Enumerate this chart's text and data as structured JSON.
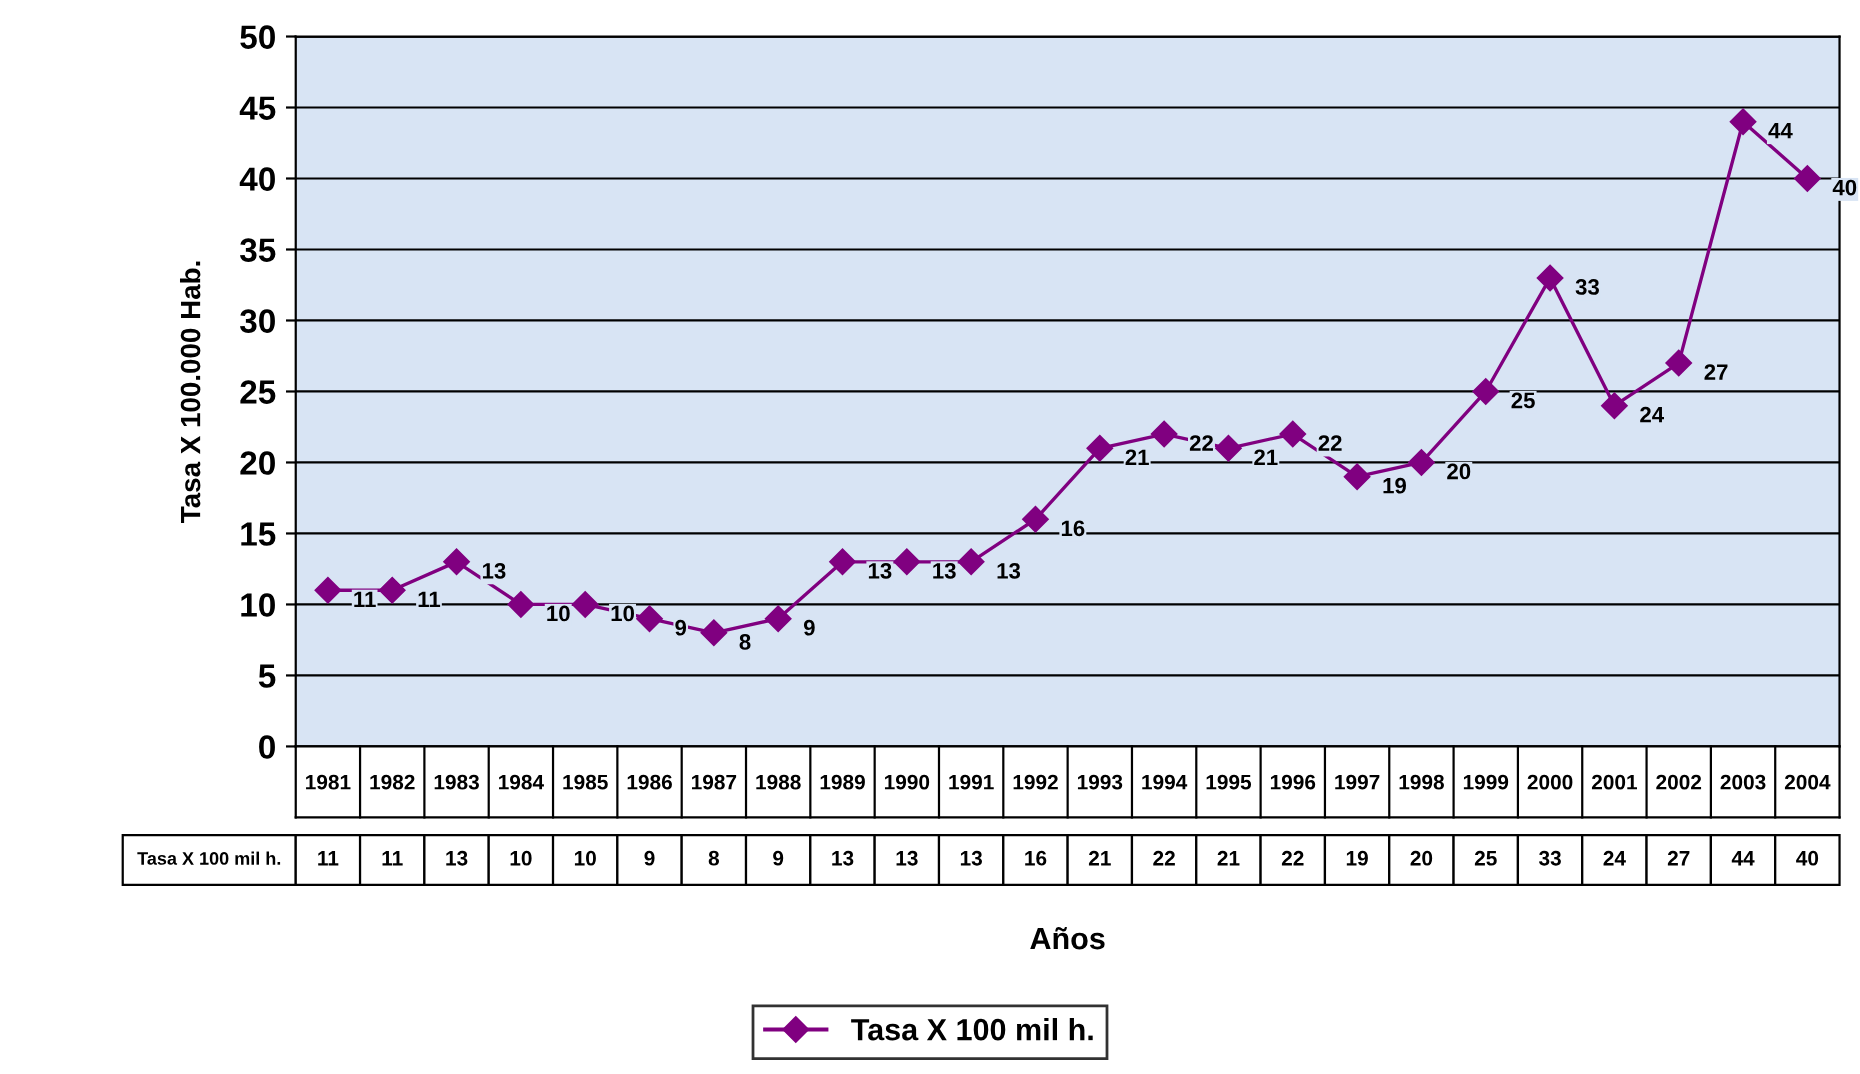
{
  "chart_data": {
    "type": "line",
    "ylabel": "Tasa X 100.000 Hab.",
    "xlabel": "Años",
    "categories": [
      "1981",
      "1982",
      "1983",
      "1984",
      "1985",
      "1986",
      "1987",
      "1988",
      "1989",
      "1990",
      "1991",
      "1992",
      "1993",
      "1994",
      "1995",
      "1996",
      "1997",
      "1998",
      "1999",
      "2000",
      "2001",
      "2002",
      "2003",
      "2004"
    ],
    "series": [
      {
        "name": "Tasa X 100 mil h.",
        "color": "#800080",
        "values": [
          11,
          11,
          13,
          10,
          10,
          9,
          8,
          9,
          13,
          13,
          13,
          16,
          21,
          22,
          21,
          22,
          19,
          20,
          25,
          33,
          24,
          27,
          44,
          40
        ]
      }
    ],
    "annotations": [
      {
        "text": "11",
        "x": "1981",
        "y": 11
      },
      {
        "text": "11",
        "x": "1982",
        "y": 11
      },
      {
        "text": "13",
        "x": "1983",
        "y": 13
      },
      {
        "text": "10",
        "x": "1984",
        "y": 10
      },
      {
        "text": "10",
        "x": "1985",
        "y": 10
      },
      {
        "text": "9",
        "x": "1986",
        "y": 9
      },
      {
        "text": "8",
        "x": "1987",
        "y": 8
      },
      {
        "text": "9",
        "x": "1988",
        "y": 9
      },
      {
        "text": "13",
        "x": "1989",
        "y": 13
      },
      {
        "text": "13",
        "x": "1990",
        "y": 13
      },
      {
        "text": "13",
        "x": "1991",
        "y": 13
      },
      {
        "text": "16",
        "x": "1992",
        "y": 16
      },
      {
        "text": "21",
        "x": "1993",
        "y": 21
      },
      {
        "text": "22",
        "x": "1994",
        "y": 22
      },
      {
        "text": "21",
        "x": "1995",
        "y": 21
      },
      {
        "text": "22",
        "x": "1996",
        "y": 22
      },
      {
        "text": "19",
        "x": "1997",
        "y": 19
      },
      {
        "text": "20",
        "x": "1998",
        "y": 20
      },
      {
        "text": "25",
        "x": "1999",
        "y": 25
      },
      {
        "text": "33",
        "x": "2000",
        "y": 33
      },
      {
        "text": "24",
        "x": "2001",
        "y": 24
      },
      {
        "text": "27",
        "x": "2002",
        "y": 27
      },
      {
        "text": "44",
        "x": "2003",
        "y": 44
      },
      {
        "text": "40",
        "x": "2004",
        "y": 40
      }
    ],
    "ylim": [
      0,
      50
    ],
    "yticks": [
      0,
      5,
      10,
      15,
      20,
      25,
      30,
      35,
      40,
      45,
      50
    ],
    "grid": "y",
    "legend": "bottom",
    "marker": "diamond",
    "line_style": "solid",
    "data_labels": true
  }
}
